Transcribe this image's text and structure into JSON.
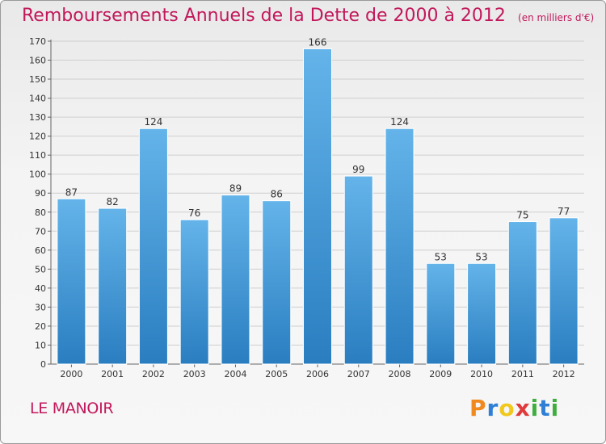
{
  "header": {
    "title": "Remboursements Annuels de la Dette de 2000 à 2012",
    "unit": "(en milliers d'€)"
  },
  "footer": {
    "commune": "LE MANOIR",
    "brand_letters": [
      {
        "ch": "P",
        "color": "#f08a1e"
      },
      {
        "ch": "r",
        "color": "#2f7fd6"
      },
      {
        "ch": "o",
        "color": "#f0c81e"
      },
      {
        "ch": "x",
        "color": "#e03a3a"
      },
      {
        "ch": "i",
        "color": "#3fae3f"
      },
      {
        "ch": "t",
        "color": "#2f7fd6"
      },
      {
        "ch": "i",
        "color": "#3fae3f"
      }
    ]
  },
  "colors": {
    "title": "#c2185b",
    "bar_top": "#64b4ea",
    "bar_bottom": "#2a7ec0",
    "grid": "#cfcfcf"
  },
  "chart_data": {
    "type": "bar",
    "title": "Remboursements Annuels de la Dette de 2000 à 2012",
    "categories": [
      "2000",
      "2001",
      "2002",
      "2003",
      "2004",
      "2005",
      "2006",
      "2007",
      "2008",
      "2009",
      "2010",
      "2011",
      "2012"
    ],
    "values": [
      87,
      82,
      124,
      76,
      89,
      86,
      166,
      99,
      124,
      53,
      53,
      75,
      77
    ],
    "ylim": [
      0,
      170
    ],
    "yticks": [
      0,
      10,
      20,
      30,
      40,
      50,
      60,
      70,
      80,
      90,
      100,
      110,
      120,
      130,
      140,
      150,
      160,
      170
    ],
    "grid": true,
    "data_labels": true
  }
}
